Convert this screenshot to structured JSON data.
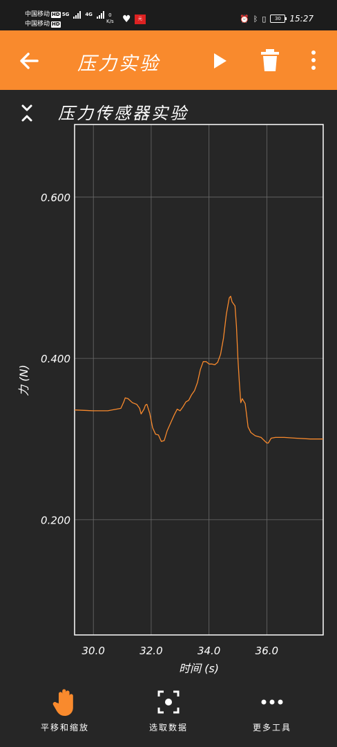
{
  "status_bar": {
    "carrier1": "中国移动",
    "carrier2": "中国移动",
    "hd": "HD",
    "net1": "5G",
    "net2": "4G",
    "speed_value": "0",
    "speed_unit": "K/s",
    "app_badge": "元",
    "battery": "30",
    "time": "15:27"
  },
  "app_bar": {
    "title": "压力实验",
    "back_icon": "arrow-left-icon",
    "play_icon": "play-icon",
    "delete_icon": "trash-icon",
    "more_icon": "more-vertical-icon"
  },
  "graph": {
    "title": "压力传感器实验",
    "collapse_icon": "collapse-icon"
  },
  "chart_data": {
    "type": "line",
    "xlabel": "时间 (s)",
    "ylabel": "力 (N)",
    "xlim": [
      29.35,
      37.95
    ],
    "ylim": [
      0.057,
      0.69
    ],
    "x_ticks": [
      30.0,
      32.0,
      34.0,
      36.0
    ],
    "x_tick_labels": [
      "30.0",
      "32.0",
      "34.0",
      "36.0"
    ],
    "y_ticks": [
      0.2,
      0.4,
      0.6
    ],
    "y_tick_labels": [
      "0.200",
      "0.400",
      "0.600"
    ],
    "grid": true,
    "line_color": "#f98a2d",
    "series": [
      {
        "x": [
          29.35,
          30.0,
          30.5,
          30.95,
          31.05,
          31.1,
          31.2,
          31.35,
          31.5,
          31.6,
          31.65,
          31.75,
          31.8,
          31.85,
          31.95,
          32.05,
          32.15,
          32.25,
          32.35,
          32.45,
          32.55,
          32.7,
          32.8,
          32.9,
          33.0,
          33.1,
          33.2,
          33.3,
          33.4,
          33.5,
          33.6,
          33.7,
          33.8,
          33.9,
          34.0,
          34.1,
          34.2,
          34.3,
          34.4,
          34.5,
          34.6,
          34.7,
          34.75,
          34.8,
          34.9,
          34.95,
          35.0,
          35.05,
          35.1,
          35.15,
          35.25,
          35.3,
          35.35,
          35.45,
          35.6,
          35.8,
          36.0,
          36.05,
          36.15,
          36.3,
          36.6,
          37.0,
          37.5,
          37.95
        ],
        "values": [
          0.336,
          0.335,
          0.335,
          0.338,
          0.346,
          0.351,
          0.35,
          0.345,
          0.343,
          0.338,
          0.331,
          0.337,
          0.342,
          0.343,
          0.332,
          0.314,
          0.306,
          0.305,
          0.297,
          0.298,
          0.31,
          0.322,
          0.33,
          0.337,
          0.335,
          0.34,
          0.346,
          0.348,
          0.355,
          0.36,
          0.37,
          0.386,
          0.396,
          0.396,
          0.393,
          0.393,
          0.392,
          0.395,
          0.405,
          0.425,
          0.455,
          0.475,
          0.477,
          0.47,
          0.465,
          0.44,
          0.4,
          0.37,
          0.345,
          0.35,
          0.344,
          0.33,
          0.315,
          0.308,
          0.304,
          0.302,
          0.295,
          0.295,
          0.301,
          0.302,
          0.302,
          0.301,
          0.3,
          0.3
        ]
      }
    ]
  },
  "toolbar": {
    "pan_label": "平移和缩放",
    "pan_icon": "hand-icon",
    "select_label": "选取数据",
    "select_icon": "focus-select-icon",
    "more_label": "更多工具",
    "more_icon": "more-horizontal-icon"
  }
}
